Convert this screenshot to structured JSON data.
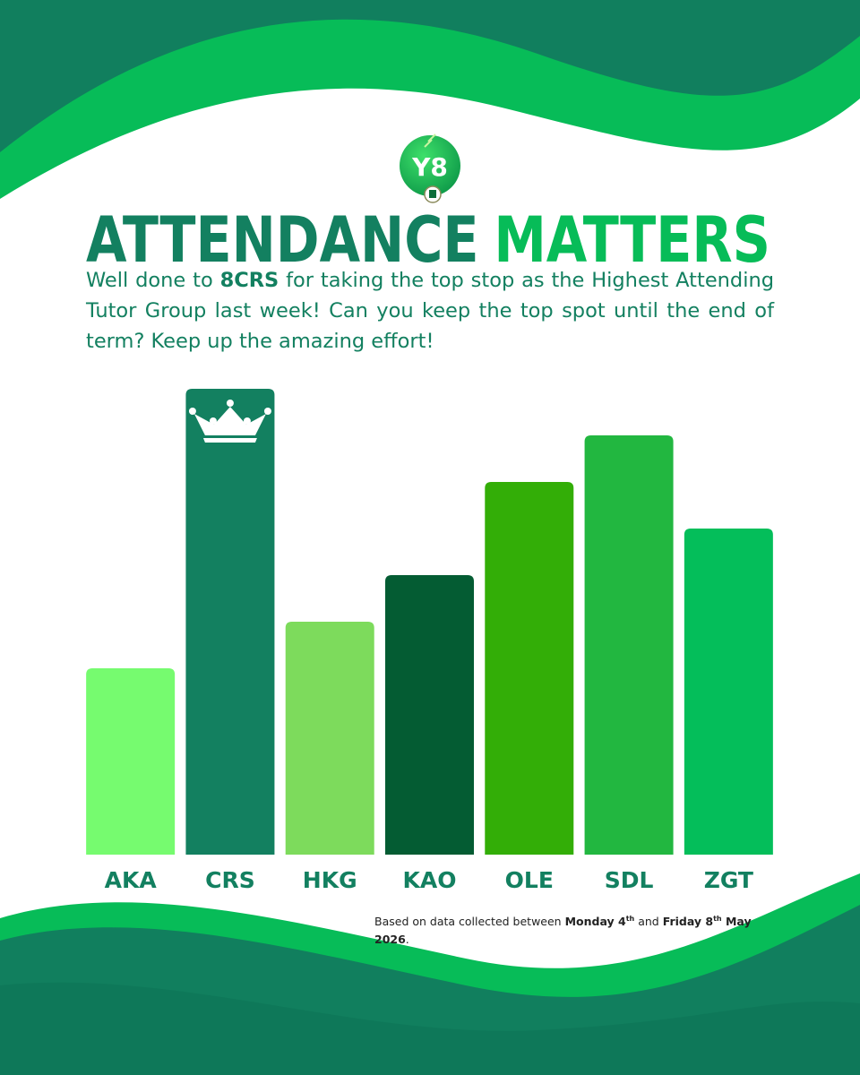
{
  "logo": "Y8",
  "title": [
    "ATTENDANCE",
    "MATTERS"
  ],
  "message": [
    "Well done to ",
    "8CRS",
    " for taking the top stop as the Highest Attending Tutor Group last week! Can you keep the top spot until the end of term? Keep up the amazing effort!"
  ],
  "footnote": [
    "Based on data collected between ",
    "Monday 4",
    "th",
    " and ",
    "Friday 8",
    "th",
    " May 2026",
    "."
  ],
  "chart_data": {
    "type": "bar",
    "categories": [
      "AKA",
      "CRS",
      "HKG",
      "KAO",
      "OLE",
      "SDL",
      "ZGT"
    ],
    "values": [
      4,
      10,
      5,
      6,
      8,
      9,
      7
    ],
    "colors": [
      "#76fb6f",
      "#138060",
      "#7ddb5c",
      "#045c33",
      "#33ae07",
      "#22b740",
      "#04be5a"
    ],
    "ylim": [
      0,
      10
    ]
  }
}
